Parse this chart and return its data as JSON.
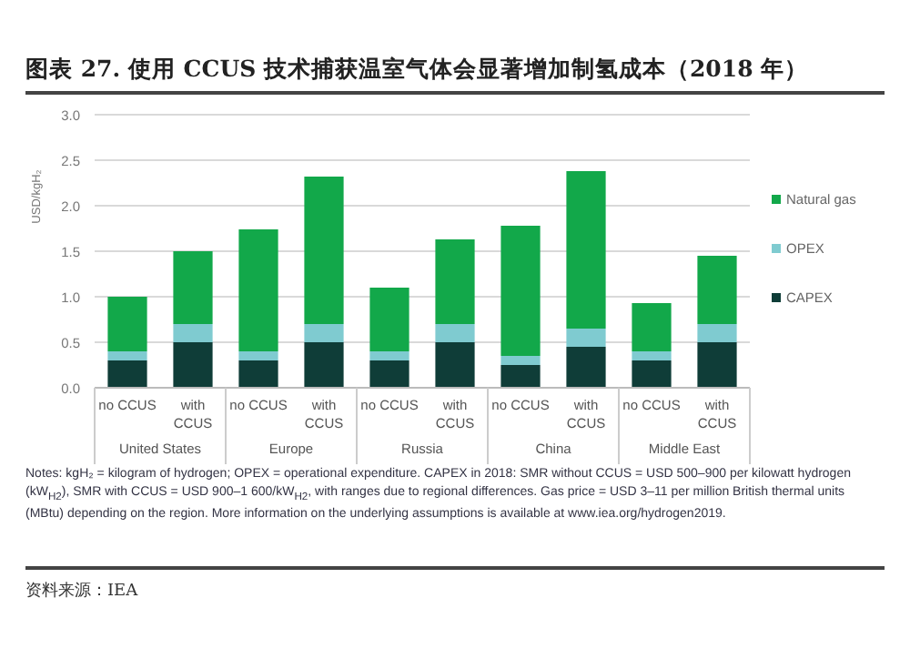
{
  "chart_data": {
    "type": "bar",
    "title": "图表 27. 使用 CCUS 技术捕获温室气体会显著增加制氢成本（2018 年）",
    "ylabel": "USD/kgH₂",
    "categories": [
      "no CCUS",
      "with CCUS",
      "no CCUS",
      "with CCUS",
      "no CCUS",
      "with CCUS",
      "no CCUS",
      "with CCUS",
      "no CCUS",
      "with CCUS"
    ],
    "stacked": true,
    "series": [
      {
        "name": "CAPEX",
        "color": "#0f3d38",
        "values": [
          0.3,
          0.5,
          0.3,
          0.5,
          0.3,
          0.5,
          0.25,
          0.45,
          0.3,
          0.5
        ]
      },
      {
        "name": "OPEX",
        "color": "#7fcbd0",
        "values": [
          0.1,
          0.2,
          0.1,
          0.2,
          0.1,
          0.2,
          0.1,
          0.2,
          0.1,
          0.2
        ]
      },
      {
        "name": "Natural gas",
        "color": "#12a84a",
        "values": [
          0.6,
          0.8,
          1.34,
          1.62,
          0.7,
          0.93,
          1.43,
          1.73,
          0.53,
          0.75
        ]
      }
    ],
    "ylim": [
      0,
      3
    ],
    "yticks": [
      {
        "value": 0,
        "label": "0.0"
      },
      {
        "value": 0.5,
        "label": "0.5"
      },
      {
        "value": 1,
        "label": "1.0"
      },
      {
        "value": 1.5,
        "label": "1.5"
      },
      {
        "value": 2,
        "label": "2.0"
      },
      {
        "value": 2.5,
        "label": "2.5"
      },
      {
        "value": 3,
        "label": "3.0"
      }
    ],
    "grid": "y",
    "legend": "right",
    "annotations": [
      "United States",
      "Europe",
      "Russia",
      "China",
      "Middle East",
      "Notes: kgH₂ = kilogram of hydrogen; OPEX = operational expenditure. CAPEX in 2018: SMR without CCUS = USD 500–900 per kilowatt hydrogen (kW$_{H2}$), SMR with CCUS = USD 900–1 600/kW$_{H2}$, with ranges due to regional differences. Gas price = USD 3–11 per million British thermal units (MBtu) depending on the region. More information on the underlying assumptions is available at www.iea.org/hydrogen2019.",
      "资料来源：IEA"
    ]
  }
}
